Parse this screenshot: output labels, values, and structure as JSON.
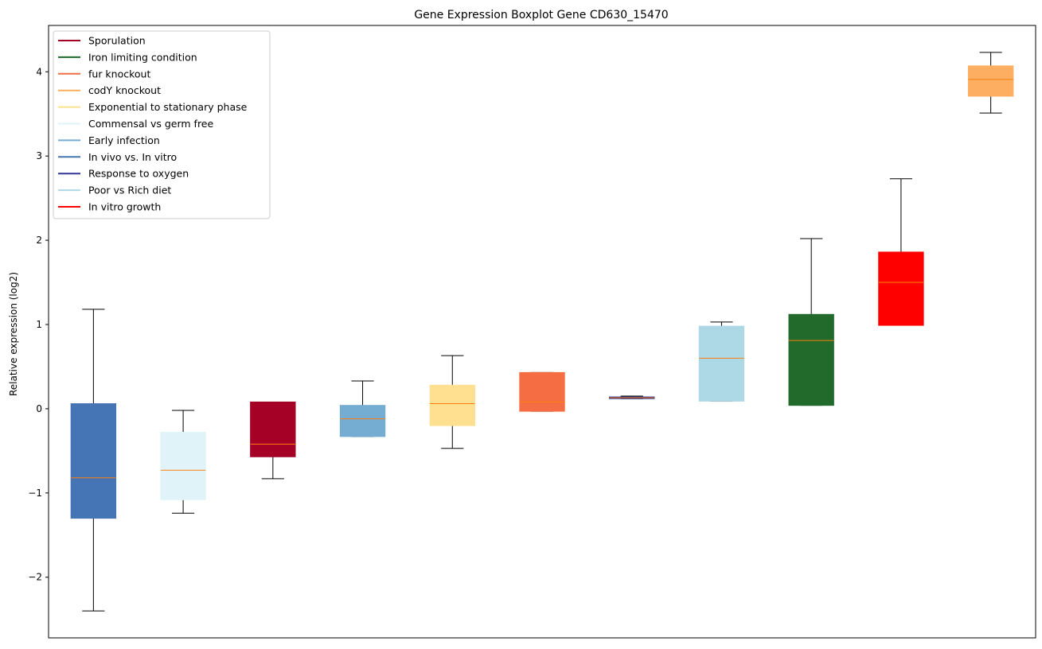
{
  "chart_data": {
    "type": "boxplot",
    "title": "Gene Expression Boxplot Gene CD630_15470",
    "xlabel": "",
    "ylabel": "Relative expression (log2)",
    "ylim": [
      -2.72,
      4.55
    ],
    "yticks": [
      {
        "value": -2,
        "label": "−2"
      },
      {
        "value": -1,
        "label": "−1"
      },
      {
        "value": 0,
        "label": "0"
      },
      {
        "value": 1,
        "label": "1"
      },
      {
        "value": 2,
        "label": "2"
      },
      {
        "value": 3,
        "label": "3"
      },
      {
        "value": 4,
        "label": "4"
      }
    ],
    "grid": false,
    "legend_position": "top-left",
    "median_color": "#ff7f0e",
    "whisker_color": "#000000",
    "legend": [
      {
        "label": "Sporulation",
        "color": "#a50026"
      },
      {
        "label": "Iron limiting condition",
        "color": "#216a2c"
      },
      {
        "label": "fur knockout",
        "color": "#f46d43"
      },
      {
        "label": "codY knockout",
        "color": "#fdae61"
      },
      {
        "label": "Exponential to stationary phase",
        "color": "#fee090"
      },
      {
        "label": "Commensal vs germ free",
        "color": "#e0f3f8"
      },
      {
        "label": "Early infection",
        "color": "#74add1"
      },
      {
        "label": "In vivo vs. In vitro",
        "color": "#4575b4"
      },
      {
        "label": "Response to oxygen",
        "color": "#313695"
      },
      {
        "label": "Poor vs Rich diet",
        "color": "#add8e6"
      },
      {
        "label": "In vitro growth",
        "color": "#ff0000"
      }
    ],
    "series": [
      {
        "name": "In vivo vs. In vitro",
        "color": "#4575b4",
        "whisker_low": -2.4,
        "q1": -1.3,
        "median": -0.82,
        "q3": 0.06,
        "whisker_high": 1.18
      },
      {
        "name": "Commensal vs germ free",
        "color": "#e0f3f8",
        "whisker_low": -1.24,
        "q1": -1.08,
        "median": -0.73,
        "q3": -0.28,
        "whisker_high": -0.02
      },
      {
        "name": "Sporulation",
        "color": "#a50026",
        "whisker_low": -0.83,
        "q1": -0.57,
        "median": -0.42,
        "q3": 0.08,
        "whisker_high": 0.08
      },
      {
        "name": "Early infection",
        "color": "#74add1",
        "whisker_low": -0.33,
        "q1": -0.33,
        "median": -0.12,
        "q3": 0.04,
        "whisker_high": 0.33
      },
      {
        "name": "Exponential to stationary phase",
        "color": "#fee090",
        "whisker_low": -0.47,
        "q1": -0.2,
        "median": 0.06,
        "q3": 0.28,
        "whisker_high": 0.63
      },
      {
        "name": "fur knockout",
        "color": "#f46d43",
        "whisker_low": -0.03,
        "q1": -0.03,
        "median": 0.08,
        "q3": 0.43,
        "whisker_high": 0.43
      },
      {
        "name": "Response to oxygen",
        "color": "#313695",
        "whisker_low": 0.12,
        "q1": 0.12,
        "median": 0.13,
        "q3": 0.14,
        "whisker_high": 0.15
      },
      {
        "name": "Poor vs Rich diet",
        "color": "#add8e6",
        "whisker_low": 0.09,
        "q1": 0.09,
        "median": 0.6,
        "q3": 0.98,
        "whisker_high": 1.03
      },
      {
        "name": "Iron limiting condition",
        "color": "#216a2c",
        "whisker_low": 0.04,
        "q1": 0.04,
        "median": 0.81,
        "q3": 1.12,
        "whisker_high": 2.02
      },
      {
        "name": "In vitro growth",
        "color": "#ff0000",
        "whisker_low": 0.99,
        "q1": 0.99,
        "median": 1.5,
        "q3": 1.86,
        "whisker_high": 2.73
      },
      {
        "name": "codY knockout",
        "color": "#fdae61",
        "whisker_low": 3.51,
        "q1": 3.71,
        "median": 3.91,
        "q3": 4.07,
        "whisker_high": 4.23
      }
    ]
  }
}
